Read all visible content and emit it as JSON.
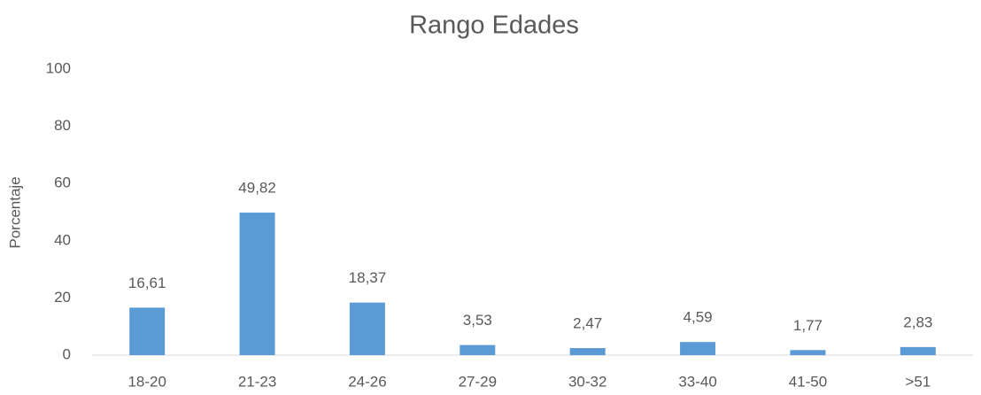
{
  "chart_data": {
    "type": "bar",
    "title": "Rango Edades",
    "y_label": "Porcentaje",
    "categories": [
      "18-20",
      "21-23",
      "24-26",
      "27-29",
      "30-32",
      "33-40",
      "41-50",
      ">51"
    ],
    "values": [
      16.61,
      49.82,
      18.37,
      3.53,
      2.47,
      4.59,
      1.77,
      2.83
    ],
    "value_labels": [
      "16,61",
      "49,82",
      "18,37",
      "3,53",
      "2,47",
      "4,59",
      "1,77",
      "2,83"
    ],
    "color": "#5b9bd5",
    "ylim": [
      0,
      100
    ],
    "yticks": [
      0,
      20,
      40,
      60,
      80,
      100
    ],
    "grid": false
  }
}
